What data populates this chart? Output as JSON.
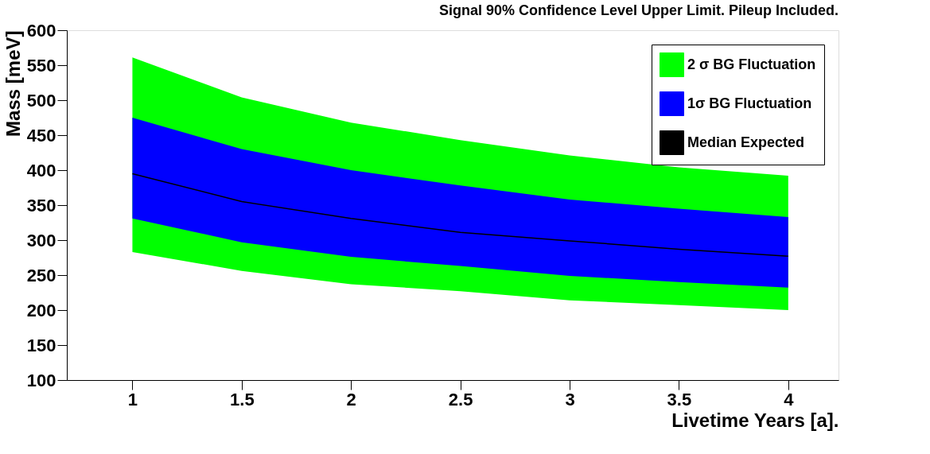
{
  "chart_data": {
    "type": "line",
    "title": "Signal 90% Confidence Level Upper Limit. Pileup Included.",
    "xlabel": "Livetime Years [a].",
    "ylabel": "Mass [meV]",
    "x": [
      1,
      1.5,
      2,
      2.5,
      3,
      3.5,
      4
    ],
    "series": [
      {
        "name": "2 σ BG Fluctuation",
        "color": "#00ff00",
        "values": [
          null,
          null,
          null,
          null,
          null,
          null,
          null
        ],
        "lower": [
          283,
          256,
          237,
          227,
          214,
          207,
          200
        ],
        "upper": [
          561,
          504,
          468,
          443,
          421,
          404,
          392
        ]
      },
      {
        "name": "1σ BG Fluctuation",
        "color": "#0000ff",
        "values": [
          null,
          null,
          null,
          null,
          null,
          null,
          null
        ],
        "lower": [
          331,
          297,
          276,
          263,
          249,
          240,
          232
        ],
        "upper": [
          475,
          430,
          400,
          378,
          358,
          345,
          333
        ]
      },
      {
        "name": "Median Expected",
        "color": "#000000",
        "values": [
          395,
          355,
          331,
          311,
          299,
          287,
          277
        ]
      }
    ],
    "xlim": [
      0.7,
      4.23
    ],
    "ylim": [
      100,
      600
    ],
    "xticks": [
      1,
      1.5,
      2,
      2.5,
      3,
      3.5,
      4
    ],
    "yticks": [
      100,
      150,
      200,
      250,
      300,
      350,
      400,
      450,
      500,
      550,
      600
    ],
    "grid": false,
    "legend": "top right",
    "line_style": "solid",
    "marker": "none"
  }
}
